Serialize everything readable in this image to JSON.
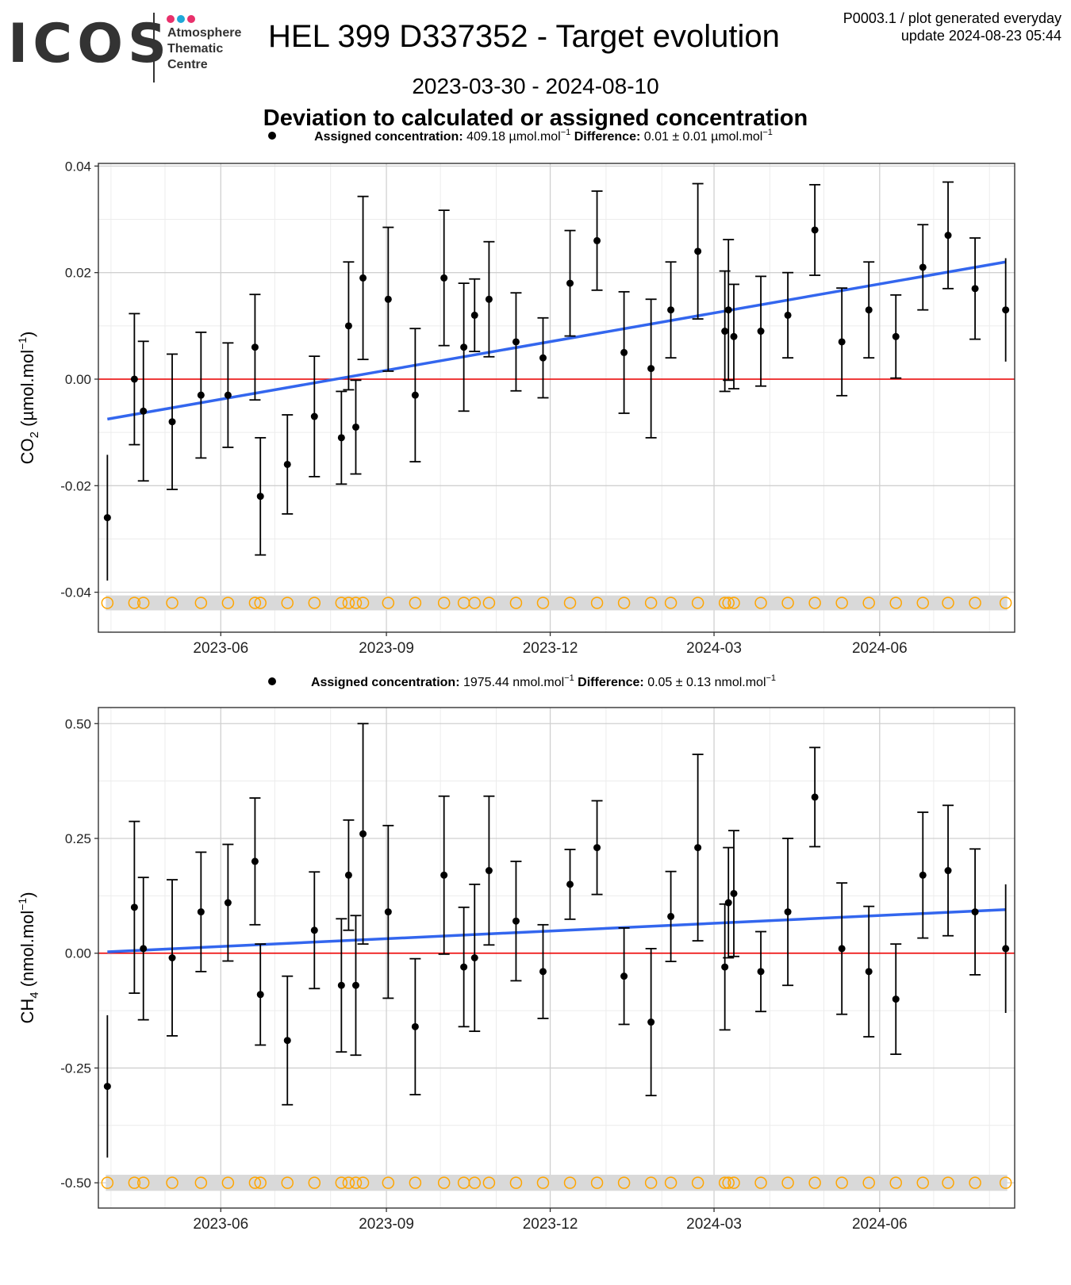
{
  "header": {
    "logo_text": "ICOS",
    "logo_subtext": [
      "Atmosphere",
      "Thematic",
      "Centre"
    ],
    "logo_dot_colors": [
      "#e8306b",
      "#1fa8d8",
      "#e8306b"
    ],
    "title": "HEL 399 D337352 - Target evolution",
    "info_line1": "P0003.1 / plot generated everyday",
    "info_line2": "update  2024-08-23 05:44",
    "date_range": "2023-03-30 - 2024-08-10",
    "subtitle": "Deviation to calculated or assigned concentration"
  },
  "colors": {
    "points": "#000000",
    "trend": "#3366ee",
    "zero_line": "#ee0000",
    "flag_circles": "#ffa500",
    "flag_band": "#d9d9d9",
    "grid_major": "#d0d0d0",
    "grid_minor": "#ececec"
  },
  "chart_data": [
    {
      "type": "scatter",
      "legend": {
        "label1": "Assigned concentration:",
        "value1": "409.18 µmol.mol",
        "sup1": "−1",
        "label2": "Difference:",
        "value2": "0.01 ± 0.01 µmol.mol",
        "sup2": "−1"
      },
      "ylabel_main": "CO",
      "ylabel_sub": "2",
      "ylabel_rest": " (µmol.mol",
      "ylabel_sup": "−1",
      "ylabel_end": ")",
      "xlim": [
        "2023-03-25",
        "2024-08-15"
      ],
      "ylim": [
        -0.0475,
        0.0405
      ],
      "y_ticks": [
        -0.04,
        -0.02,
        0.0,
        0.02,
        0.04
      ],
      "y_tick_labels": [
        "-0.04",
        "-0.02",
        "0.00",
        "0.02",
        "0.04"
      ],
      "x_ticks": [
        "2023-06-01",
        "2023-09-01",
        "2023-12-01",
        "2024-03-01",
        "2024-06-01"
      ],
      "x_tick_labels": [
        "2023-06",
        "2023-09",
        "2023-12",
        "2024-03",
        "2024-06"
      ],
      "flag_y": -0.042,
      "trend": {
        "x": [
          "2023-03-30",
          "2024-08-10"
        ],
        "y": [
          -0.0075,
          0.022
        ]
      },
      "points": [
        {
          "date": "2023-03-30",
          "y": -0.026,
          "err": 0.0118
        },
        {
          "date": "2023-04-14",
          "y": 0.0,
          "err": 0.0123
        },
        {
          "date": "2023-04-19",
          "y": -0.006,
          "err": 0.0131
        },
        {
          "date": "2023-05-05",
          "y": -0.008,
          "err": 0.0127
        },
        {
          "date": "2023-05-21",
          "y": -0.003,
          "err": 0.0118
        },
        {
          "date": "2023-06-05",
          "y": -0.003,
          "err": 0.0098
        },
        {
          "date": "2023-06-20",
          "y": 0.006,
          "err": 0.0099
        },
        {
          "date": "2023-06-23",
          "y": -0.022,
          "err": 0.011
        },
        {
          "date": "2023-07-08",
          "y": -0.016,
          "err": 0.0093
        },
        {
          "date": "2023-07-23",
          "y": -0.007,
          "err": 0.0113
        },
        {
          "date": "2023-08-07",
          "y": -0.011,
          "err": 0.0087
        },
        {
          "date": "2023-08-11",
          "y": 0.01,
          "err": 0.012
        },
        {
          "date": "2023-08-15",
          "y": -0.009,
          "err": 0.0088
        },
        {
          "date": "2023-08-19",
          "y": 0.019,
          "err": 0.0153
        },
        {
          "date": "2023-09-02",
          "y": 0.015,
          "err": 0.0135
        },
        {
          "date": "2023-09-17",
          "y": -0.003,
          "err": 0.0125
        },
        {
          "date": "2023-10-03",
          "y": 0.019,
          "err": 0.0127
        },
        {
          "date": "2023-10-14",
          "y": 0.006,
          "err": 0.012
        },
        {
          "date": "2023-10-20",
          "y": 0.012,
          "err": 0.0068
        },
        {
          "date": "2023-10-28",
          "y": 0.015,
          "err": 0.0108
        },
        {
          "date": "2023-11-12",
          "y": 0.007,
          "err": 0.0092
        },
        {
          "date": "2023-11-27",
          "y": 0.004,
          "err": 0.0075
        },
        {
          "date": "2023-12-12",
          "y": 0.018,
          "err": 0.0099
        },
        {
          "date": "2023-12-27",
          "y": 0.026,
          "err": 0.0093
        },
        {
          "date": "2024-01-11",
          "y": 0.005,
          "err": 0.0114
        },
        {
          "date": "2024-01-26",
          "y": 0.002,
          "err": 0.013
        },
        {
          "date": "2024-02-06",
          "y": 0.013,
          "err": 0.009
        },
        {
          "date": "2024-02-21",
          "y": 0.024,
          "err": 0.0127
        },
        {
          "date": "2024-03-07",
          "y": 0.009,
          "err": 0.0113
        },
        {
          "date": "2024-03-09",
          "y": 0.013,
          "err": 0.0132
        },
        {
          "date": "2024-03-12",
          "y": 0.008,
          "err": 0.0098
        },
        {
          "date": "2024-03-27",
          "y": 0.009,
          "err": 0.0103
        },
        {
          "date": "2024-04-11",
          "y": 0.012,
          "err": 0.008
        },
        {
          "date": "2024-04-26",
          "y": 0.028,
          "err": 0.0085
        },
        {
          "date": "2024-05-11",
          "y": 0.007,
          "err": 0.0101
        },
        {
          "date": "2024-05-26",
          "y": 0.013,
          "err": 0.009
        },
        {
          "date": "2024-06-10",
          "y": 0.008,
          "err": 0.0078
        },
        {
          "date": "2024-06-25",
          "y": 0.021,
          "err": 0.008
        },
        {
          "date": "2024-07-09",
          "y": 0.027,
          "err": 0.01
        },
        {
          "date": "2024-07-24",
          "y": 0.017,
          "err": 0.0095
        },
        {
          "date": "2024-08-10",
          "y": 0.013,
          "err": 0.0097
        }
      ]
    },
    {
      "type": "scatter",
      "legend": {
        "label1": "Assigned concentration:",
        "value1": "1975.44 nmol.mol",
        "sup1": "−1",
        "label2": "Difference:",
        "value2": "0.05 ± 0.13 nmol.mol",
        "sup2": "−1"
      },
      "ylabel_main": "CH",
      "ylabel_sub": "4",
      "ylabel_rest": " (nmol.mol",
      "ylabel_sup": "−1",
      "ylabel_end": ")",
      "xlim": [
        "2023-03-25",
        "2024-08-15"
      ],
      "ylim": [
        -0.555,
        0.535
      ],
      "y_ticks": [
        -0.5,
        -0.25,
        0.0,
        0.25,
        0.5
      ],
      "y_tick_labels": [
        "-0.50",
        "-0.25",
        "0.00",
        "0.25",
        "0.50"
      ],
      "x_ticks": [
        "2023-06-01",
        "2023-09-01",
        "2023-12-01",
        "2024-03-01",
        "2024-06-01"
      ],
      "x_tick_labels": [
        "2023-06",
        "2023-09",
        "2023-12",
        "2024-03",
        "2024-06"
      ],
      "flag_y": -0.5,
      "trend": {
        "x": [
          "2023-03-30",
          "2024-08-10"
        ],
        "y": [
          0.003,
          0.095
        ]
      },
      "points": [
        {
          "date": "2023-03-30",
          "y": -0.29,
          "err": 0.155
        },
        {
          "date": "2023-04-14",
          "y": 0.1,
          "err": 0.187
        },
        {
          "date": "2023-04-19",
          "y": 0.01,
          "err": 0.155
        },
        {
          "date": "2023-05-05",
          "y": -0.01,
          "err": 0.17
        },
        {
          "date": "2023-05-21",
          "y": 0.09,
          "err": 0.13
        },
        {
          "date": "2023-06-05",
          "y": 0.11,
          "err": 0.127
        },
        {
          "date": "2023-06-20",
          "y": 0.2,
          "err": 0.138
        },
        {
          "date": "2023-06-23",
          "y": -0.09,
          "err": 0.11
        },
        {
          "date": "2023-07-08",
          "y": -0.19,
          "err": 0.14
        },
        {
          "date": "2023-07-23",
          "y": 0.05,
          "err": 0.127
        },
        {
          "date": "2023-08-07",
          "y": -0.07,
          "err": 0.145
        },
        {
          "date": "2023-08-11",
          "y": 0.17,
          "err": 0.12
        },
        {
          "date": "2023-08-15",
          "y": -0.07,
          "err": 0.152
        },
        {
          "date": "2023-08-19",
          "y": 0.26,
          "err": 0.24
        },
        {
          "date": "2023-09-02",
          "y": 0.09,
          "err": 0.188
        },
        {
          "date": "2023-09-17",
          "y": -0.16,
          "err": 0.148
        },
        {
          "date": "2023-10-03",
          "y": 0.17,
          "err": 0.172
        },
        {
          "date": "2023-10-14",
          "y": -0.03,
          "err": 0.13
        },
        {
          "date": "2023-10-20",
          "y": -0.01,
          "err": 0.16
        },
        {
          "date": "2023-10-28",
          "y": 0.18,
          "err": 0.162
        },
        {
          "date": "2023-11-12",
          "y": 0.07,
          "err": 0.13
        },
        {
          "date": "2023-11-27",
          "y": -0.04,
          "err": 0.102
        },
        {
          "date": "2023-12-12",
          "y": 0.15,
          "err": 0.076
        },
        {
          "date": "2023-12-27",
          "y": 0.23,
          "err": 0.102
        },
        {
          "date": "2024-01-11",
          "y": -0.05,
          "err": 0.105
        },
        {
          "date": "2024-01-26",
          "y": -0.15,
          "err": 0.16
        },
        {
          "date": "2024-02-06",
          "y": 0.08,
          "err": 0.098
        },
        {
          "date": "2024-02-21",
          "y": 0.23,
          "err": 0.203
        },
        {
          "date": "2024-03-07",
          "y": -0.03,
          "err": 0.137
        },
        {
          "date": "2024-03-09",
          "y": 0.11,
          "err": 0.12
        },
        {
          "date": "2024-03-12",
          "y": 0.13,
          "err": 0.137
        },
        {
          "date": "2024-03-27",
          "y": -0.04,
          "err": 0.087
        },
        {
          "date": "2024-04-11",
          "y": 0.09,
          "err": 0.16
        },
        {
          "date": "2024-04-26",
          "y": 0.34,
          "err": 0.108
        },
        {
          "date": "2024-05-11",
          "y": 0.01,
          "err": 0.143
        },
        {
          "date": "2024-05-26",
          "y": -0.04,
          "err": 0.142
        },
        {
          "date": "2024-06-10",
          "y": -0.1,
          "err": 0.12
        },
        {
          "date": "2024-06-25",
          "y": 0.17,
          "err": 0.137
        },
        {
          "date": "2024-07-09",
          "y": 0.18,
          "err": 0.142
        },
        {
          "date": "2024-07-24",
          "y": 0.09,
          "err": 0.137
        },
        {
          "date": "2024-08-10",
          "y": 0.01,
          "err": 0.14
        }
      ]
    }
  ]
}
